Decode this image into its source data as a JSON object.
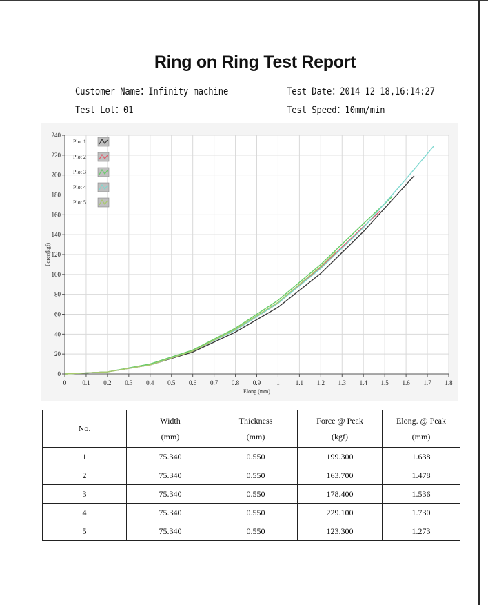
{
  "report": {
    "title": "Ring on Ring Test Report",
    "customer_name": "Customer Name：Infinity machine",
    "test_date": "Test Date：2014 12 18,16:14:27",
    "test_lot": "Test Lot：01",
    "test_speed": "Test Speed：10mm/min"
  },
  "chart_data": {
    "type": "line",
    "xlabel": "Elong.(mm)",
    "ylabel": "Force(kgf)",
    "xlim": [
      0,
      1.8
    ],
    "ylim": [
      0,
      240
    ],
    "x_ticks": [
      "0",
      "0.1",
      "0.2",
      "0.3",
      "0.4",
      "0.5",
      "0.6",
      "0.7",
      "0.8",
      "0.9",
      "1",
      "1.1",
      "1.2",
      "1.3",
      "1.4",
      "1.5",
      "1.6",
      "1.7",
      "1.8"
    ],
    "y_ticks": [
      "0",
      "20",
      "40",
      "60",
      "80",
      "100",
      "120",
      "140",
      "160",
      "180",
      "200",
      "220",
      "240"
    ],
    "grid": true,
    "legend_position": "top-left",
    "series": [
      {
        "name": "Plot 1",
        "color": "#3a3a3a",
        "x": [
          0,
          0.2,
          0.4,
          0.6,
          0.8,
          1.0,
          1.2,
          1.4,
          1.638
        ],
        "y": [
          0,
          2,
          9,
          22,
          42,
          67,
          101,
          143,
          199.3
        ]
      },
      {
        "name": "Plot 2",
        "color": "#e05a6a",
        "x": [
          0,
          0.2,
          0.4,
          0.6,
          0.8,
          1.0,
          1.2,
          1.4,
          1.478
        ],
        "y": [
          0,
          2,
          9,
          23,
          44,
          71,
          107,
          148,
          163.7
        ]
      },
      {
        "name": "Plot 3",
        "color": "#66cc66",
        "x": [
          0,
          0.2,
          0.4,
          0.6,
          0.8,
          1.0,
          1.2,
          1.4,
          1.536
        ],
        "y": [
          0,
          2,
          10,
          24,
          46,
          74,
          110,
          151,
          178.4
        ]
      },
      {
        "name": "Plot 4",
        "color": "#7fd8d0",
        "x": [
          0,
          0.2,
          0.4,
          0.6,
          0.8,
          1.0,
          1.2,
          1.4,
          1.6,
          1.73
        ],
        "y": [
          0,
          2,
          9,
          23,
          44,
          71,
          106,
          147,
          196,
          229.1
        ]
      },
      {
        "name": "Plot 5",
        "color": "#a8c96a",
        "x": [
          0,
          0.2,
          0.4,
          0.6,
          0.8,
          1.0,
          1.2,
          1.273
        ],
        "y": [
          0,
          2,
          9,
          23,
          45,
          72,
          108,
          123.3
        ]
      }
    ]
  },
  "table": {
    "headers": [
      {
        "line1": "No.",
        "line2": ""
      },
      {
        "line1": "Width",
        "line2": "(mm)"
      },
      {
        "line1": "Thickness",
        "line2": "(mm)"
      },
      {
        "line1": "Force @ Peak",
        "line2": "(kgf)"
      },
      {
        "line1": "Elong. @ Peak",
        "line2": "(mm)"
      }
    ],
    "rows": [
      [
        "1",
        "75.340",
        "0.550",
        "199.300",
        "1.638"
      ],
      [
        "2",
        "75.340",
        "0.550",
        "163.700",
        "1.478"
      ],
      [
        "3",
        "75.340",
        "0.550",
        "178.400",
        "1.536"
      ],
      [
        "4",
        "75.340",
        "0.550",
        "229.100",
        "1.730"
      ],
      [
        "5",
        "75.340",
        "0.550",
        "123.300",
        "1.273"
      ]
    ]
  }
}
